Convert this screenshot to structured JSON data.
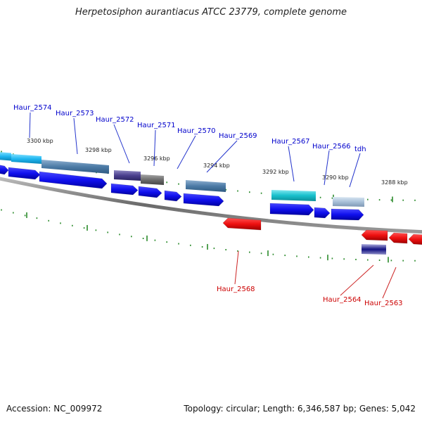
{
  "title": "Herpetosiphon aurantiacus ATCC 23779, complete genome",
  "footer": {
    "accession": "Accession: NC_009972",
    "summary": "Topology: circular; Length: 6,346,587 bp; Genes: 5,042"
  },
  "colors": {
    "backbone": "#7a7a7a",
    "tick": "#2a8a2a",
    "forward_cds": "#1010ee",
    "reverse_cds": "#ee1010",
    "label_forward": "#0000cc",
    "label_reverse": "#cc0000"
  },
  "scale_labels": [
    "3300 kbp",
    "3298 kbp",
    "3296 kbp",
    "3294 kbp",
    "3292 kbp",
    "3290 kbp",
    "3288 kbp"
  ],
  "forward_labels": [
    "Haur_2574",
    "Haur_2573",
    "Haur_2572",
    "Haur_2571",
    "Haur_2570",
    "Haur_2569",
    "Haur_2567",
    "Haur_2566",
    "tdh"
  ],
  "reverse_labels": [
    "Haur_2568",
    "Haur_2564",
    "Haur_2563"
  ]
}
